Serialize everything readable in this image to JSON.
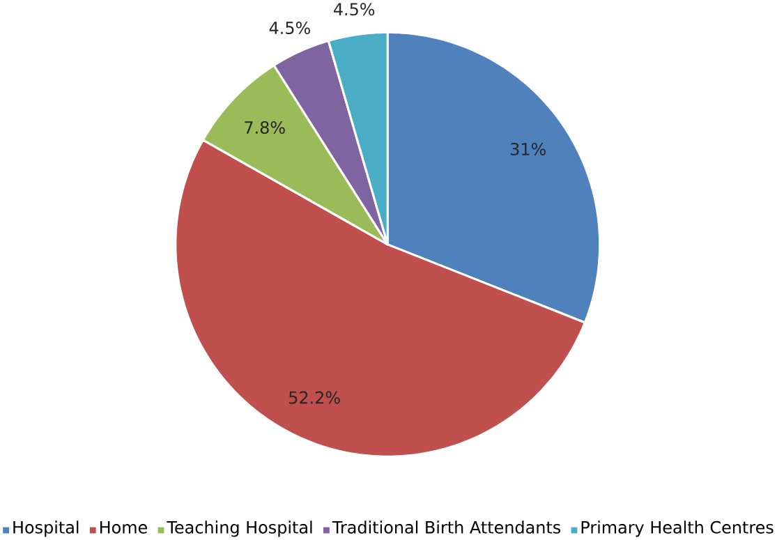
{
  "chart_data": {
    "type": "pie",
    "categories": [
      "Hospital",
      "Home",
      "Teaching Hospital",
      "Traditional Birth Attendants",
      "Primary Health Centres"
    ],
    "values": [
      31,
      52.2,
      7.8,
      4.5,
      4.5
    ],
    "colors": [
      "#4f81bd",
      "#c0504d",
      "#9bbb59",
      "#8064a2",
      "#4bacc6"
    ],
    "value_labels": [
      "31%",
      "52.2%",
      "7.8%",
      "4.5%",
      "4.5%"
    ],
    "legend": "bottom"
  }
}
